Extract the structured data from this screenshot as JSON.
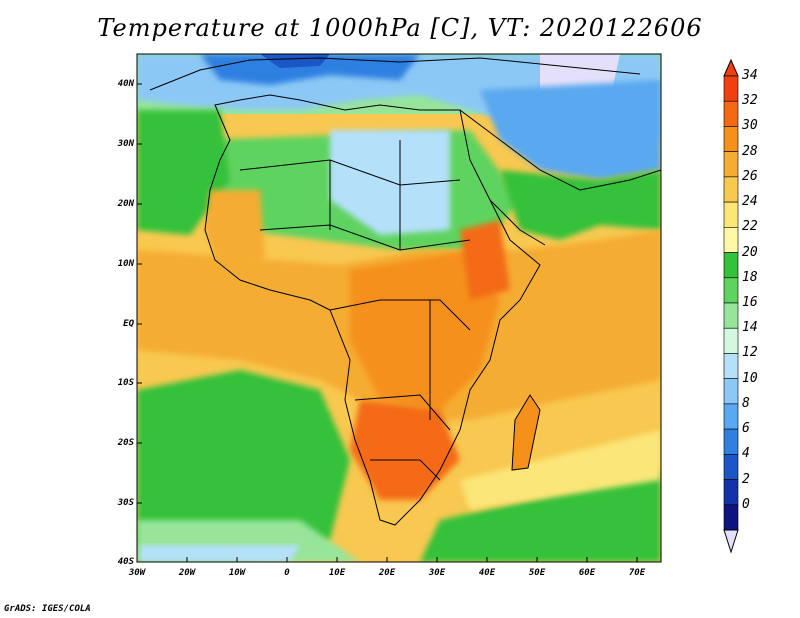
{
  "title": "Temperature at 1000hPa [C], VT: 2020122606",
  "credit": "GrADS: IGES/COLA",
  "map": {
    "region": "Africa",
    "lon_range": [
      -30,
      75
    ],
    "lat_range": [
      -40,
      45
    ],
    "lat_ticks": [
      "40N",
      "30N",
      "20N",
      "10N",
      "EQ",
      "10S",
      "20S",
      "30S",
      "40S"
    ],
    "lon_ticks": [
      "30W",
      "20W",
      "10W",
      "0",
      "10E",
      "20E",
      "30E",
      "40E",
      "50E",
      "60E",
      "70E"
    ]
  },
  "colorbar": {
    "labels": [
      "34",
      "32",
      "30",
      "28",
      "26",
      "24",
      "22",
      "20",
      "18",
      "16",
      "14",
      "12",
      "10",
      "8",
      "6",
      "4",
      "2",
      "0"
    ],
    "colors": [
      "#f04010",
      "#f46a14",
      "#f5901a",
      "#f5ac30",
      "#f8c850",
      "#fbe678",
      "#fdf7a6",
      "#36c13a",
      "#5fd35f",
      "#96e59a",
      "#d4f8de",
      "#b5e0fa",
      "#8cc8f6",
      "#5aa8ef",
      "#2f80e0",
      "#1a56c6",
      "#1232a8",
      "#0c167e"
    ],
    "under_color": "#e4e0fa"
  }
}
